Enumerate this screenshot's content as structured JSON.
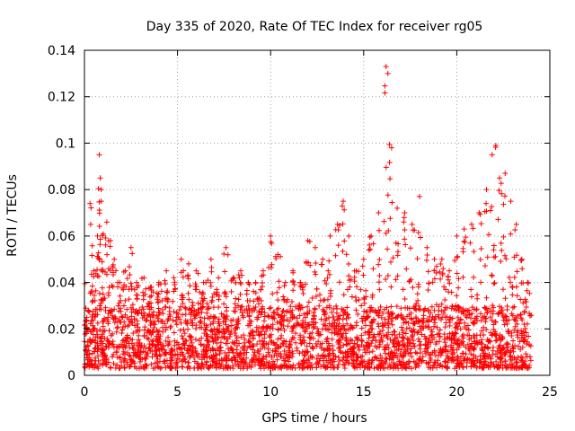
{
  "chart_data": {
    "type": "scatter",
    "title": "Day 335 of 2020, Rate Of TEC Index for receiver rg05",
    "xlabel": "GPS time / hours",
    "ylabel": "ROTI / TECUs",
    "xlim": [
      0,
      25
    ],
    "ylim": [
      0,
      0.14
    ],
    "xticks": [
      0,
      5,
      10,
      15,
      20,
      25
    ],
    "yticks": [
      0,
      0.02,
      0.04,
      0.06,
      0.08,
      0.1,
      0.12,
      0.14
    ],
    "xtick_labels": [
      "0",
      "5",
      "10",
      "15",
      "20",
      "25"
    ],
    "ytick_labels": [
      "0",
      "0.02",
      "0.04",
      "0.06",
      "0.08",
      "0.1",
      "0.12",
      "0.14"
    ],
    "grid": true,
    "marker": "+",
    "series": [
      {
        "color": "#ff0000",
        "x": [
          0.1,
          0.3,
          0.5,
          0.7,
          0.8,
          0.85,
          0.9,
          1.0,
          1.2,
          1.4,
          1.6,
          1.9,
          2.2,
          2.5,
          2.8,
          3.2,
          3.6,
          4.0,
          4.4,
          4.8,
          5.2,
          5.6,
          6.0,
          6.4,
          6.8,
          7.2,
          7.6,
          8.0,
          8.4,
          8.8,
          9.2,
          9.6,
          10.0,
          10.4,
          10.8,
          11.2,
          11.6,
          12.0,
          12.4,
          12.8,
          13.2,
          13.6,
          13.9,
          14.2,
          14.6,
          15.0,
          15.4,
          15.8,
          16.2,
          16.3,
          16.5,
          16.8,
          17.2,
          17.6,
          18.0,
          18.4,
          18.8,
          19.2,
          19.6,
          20.0,
          20.4,
          20.8,
          21.2,
          21.6,
          21.9,
          22.1,
          22.3,
          22.6,
          22.9,
          23.2,
          23.5,
          23.8
        ],
        "y": [
          0.018,
          0.074,
          0.045,
          0.06,
          0.095,
          0.085,
          0.08,
          0.035,
          0.066,
          0.058,
          0.05,
          0.04,
          0.045,
          0.055,
          0.04,
          0.042,
          0.038,
          0.04,
          0.045,
          0.042,
          0.05,
          0.048,
          0.045,
          0.04,
          0.05,
          0.042,
          0.055,
          0.042,
          0.045,
          0.04,
          0.04,
          0.045,
          0.06,
          0.052,
          0.04,
          0.045,
          0.04,
          0.058,
          0.055,
          0.05,
          0.06,
          0.065,
          0.075,
          0.06,
          0.045,
          0.05,
          0.06,
          0.07,
          0.133,
          0.13,
          0.098,
          0.072,
          0.07,
          0.065,
          0.077,
          0.055,
          0.05,
          0.05,
          0.045,
          0.06,
          0.063,
          0.065,
          0.07,
          0.08,
          0.095,
          0.099,
          0.085,
          0.087,
          0.075,
          0.065,
          0.05,
          0.04
        ]
      }
    ],
    "baseline_band": {
      "description_note": "",
      "x_start": 0,
      "x_end": 24,
      "y_low": 0.003,
      "y_high": 0.03
    }
  }
}
